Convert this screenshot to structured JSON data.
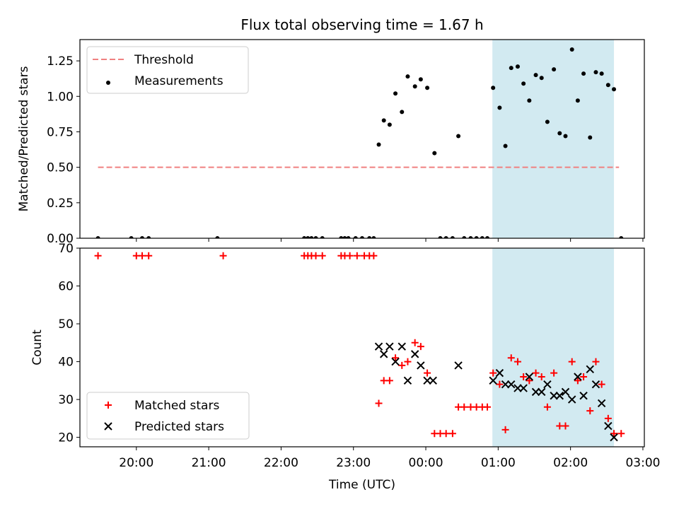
{
  "title": "Flux total observing time = 1.67 h",
  "colors": {
    "threshold": "#f08080",
    "measurements": "#000000",
    "matched": "#ff0000",
    "predicted": "#000000",
    "span": "#add8e6"
  },
  "chart_data": [
    {
      "type": "scatter",
      "ylabel": "Matched/Predicted stars",
      "ylim": [
        0,
        1.4
      ],
      "yticks": [
        "0.00",
        "0.25",
        "0.50",
        "0.75",
        "1.00",
        "1.25"
      ],
      "x_unit": "hours since 00:00 UTC (negative = previous evening)",
      "xlim": [
        -4.78,
        3.02
      ],
      "shaded_span": [
        0.92,
        2.6
      ],
      "legend": {
        "position": "upper-left",
        "entries": [
          "Threshold",
          "Measurements"
        ]
      },
      "threshold": {
        "name": "Threshold",
        "value": 0.5,
        "x_range": [
          -4.53,
          2.67
        ]
      },
      "series": [
        {
          "name": "Measurements",
          "points": [
            [
              -4.53,
              0
            ],
            [
              -4.07,
              0
            ],
            [
              -3.92,
              0
            ],
            [
              -3.83,
              0
            ],
            [
              -2.88,
              0
            ],
            [
              -1.68,
              0
            ],
            [
              -1.63,
              0
            ],
            [
              -1.58,
              0
            ],
            [
              -1.52,
              0
            ],
            [
              -1.43,
              0
            ],
            [
              -1.17,
              0
            ],
            [
              -1.12,
              0
            ],
            [
              -1.07,
              0
            ],
            [
              -0.97,
              0
            ],
            [
              -0.88,
              0
            ],
            [
              -0.78,
              0
            ],
            [
              -0.72,
              0
            ],
            [
              -0.65,
              0.66
            ],
            [
              -0.58,
              0.83
            ],
            [
              -0.5,
              0.8
            ],
            [
              -0.42,
              1.02
            ],
            [
              -0.33,
              0.89
            ],
            [
              -0.25,
              1.14
            ],
            [
              -0.15,
              1.07
            ],
            [
              -0.07,
              1.12
            ],
            [
              0.02,
              1.06
            ],
            [
              0.12,
              0.6
            ],
            [
              0.2,
              0
            ],
            [
              0.28,
              0
            ],
            [
              0.37,
              0
            ],
            [
              0.45,
              0.72
            ],
            [
              0.53,
              0
            ],
            [
              0.62,
              0
            ],
            [
              0.7,
              0
            ],
            [
              0.78,
              0
            ],
            [
              0.85,
              0
            ],
            [
              0.93,
              1.06
            ],
            [
              1.02,
              0.92
            ],
            [
              1.1,
              0.65
            ],
            [
              1.18,
              1.2
            ],
            [
              1.27,
              1.21
            ],
            [
              1.35,
              1.09
            ],
            [
              1.43,
              0.97
            ],
            [
              1.52,
              1.15
            ],
            [
              1.6,
              1.13
            ],
            [
              1.68,
              0.82
            ],
            [
              1.77,
              1.19
            ],
            [
              1.85,
              0.74
            ],
            [
              1.93,
              0.72
            ],
            [
              2.02,
              1.33
            ],
            [
              2.1,
              0.97
            ],
            [
              2.18,
              1.16
            ],
            [
              2.27,
              0.71
            ],
            [
              2.35,
              1.17
            ],
            [
              2.43,
              1.16
            ],
            [
              2.52,
              1.08
            ],
            [
              2.6,
              1.05
            ],
            [
              2.7,
              0
            ]
          ]
        }
      ]
    },
    {
      "type": "scatter",
      "ylabel": "Count",
      "xlabel": "Time (UTC)",
      "ylim": [
        17.5,
        70
      ],
      "yticks": [
        "20",
        "30",
        "40",
        "50",
        "60",
        "70"
      ],
      "xticks": [
        "20:00",
        "21:00",
        "22:00",
        "23:00",
        "00:00",
        "01:00",
        "02:00",
        "03:00"
      ],
      "x_unit": "hours since 00:00 UTC (negative = previous evening)",
      "xlim": [
        -4.78,
        3.02
      ],
      "shaded_span": [
        0.92,
        2.6
      ],
      "legend": {
        "position": "lower-left",
        "entries": [
          "Matched stars",
          "Predicted stars"
        ]
      },
      "series": [
        {
          "name": "Matched stars",
          "points": [
            [
              -4.53,
              68
            ],
            [
              -4.0,
              68
            ],
            [
              -3.92,
              68
            ],
            [
              -3.83,
              68
            ],
            [
              -2.8,
              68
            ],
            [
              -1.68,
              68
            ],
            [
              -1.63,
              68
            ],
            [
              -1.58,
              68
            ],
            [
              -1.52,
              68
            ],
            [
              -1.43,
              68
            ],
            [
              -1.17,
              68
            ],
            [
              -1.12,
              68
            ],
            [
              -1.05,
              68
            ],
            [
              -0.95,
              68
            ],
            [
              -0.85,
              68
            ],
            [
              -0.78,
              68
            ],
            [
              -0.72,
              68
            ],
            [
              -0.65,
              29
            ],
            [
              -0.58,
              35
            ],
            [
              -0.5,
              35
            ],
            [
              -0.42,
              41
            ],
            [
              -0.33,
              39
            ],
            [
              -0.25,
              40
            ],
            [
              -0.15,
              45
            ],
            [
              -0.07,
              44
            ],
            [
              0.02,
              37
            ],
            [
              0.12,
              21
            ],
            [
              0.2,
              21
            ],
            [
              0.28,
              21
            ],
            [
              0.37,
              21
            ],
            [
              0.45,
              28
            ],
            [
              0.53,
              28
            ],
            [
              0.62,
              28
            ],
            [
              0.7,
              28
            ],
            [
              0.78,
              28
            ],
            [
              0.85,
              28
            ],
            [
              0.93,
              37
            ],
            [
              1.02,
              34
            ],
            [
              1.1,
              22
            ],
            [
              1.18,
              41
            ],
            [
              1.27,
              40
            ],
            [
              1.35,
              36
            ],
            [
              1.43,
              35
            ],
            [
              1.52,
              37
            ],
            [
              1.6,
              36
            ],
            [
              1.68,
              28
            ],
            [
              1.77,
              37
            ],
            [
              1.85,
              23
            ],
            [
              1.93,
              23
            ],
            [
              2.02,
              40
            ],
            [
              2.1,
              35
            ],
            [
              2.18,
              36
            ],
            [
              2.27,
              27
            ],
            [
              2.35,
              40
            ],
            [
              2.43,
              34
            ],
            [
              2.52,
              25
            ],
            [
              2.6,
              21
            ],
            [
              2.7,
              21
            ]
          ]
        },
        {
          "name": "Predicted stars",
          "points": [
            [
              -0.65,
              44
            ],
            [
              -0.58,
              42
            ],
            [
              -0.5,
              44
            ],
            [
              -0.42,
              40
            ],
            [
              -0.33,
              44
            ],
            [
              -0.25,
              35
            ],
            [
              -0.15,
              42
            ],
            [
              -0.07,
              39
            ],
            [
              0.02,
              35
            ],
            [
              0.1,
              35
            ],
            [
              0.45,
              39
            ],
            [
              0.93,
              35
            ],
            [
              1.02,
              37
            ],
            [
              1.1,
              34
            ],
            [
              1.18,
              34
            ],
            [
              1.27,
              33
            ],
            [
              1.35,
              33
            ],
            [
              1.43,
              36
            ],
            [
              1.52,
              32
            ],
            [
              1.6,
              32
            ],
            [
              1.68,
              34
            ],
            [
              1.77,
              31
            ],
            [
              1.85,
              31
            ],
            [
              1.93,
              32
            ],
            [
              2.02,
              30
            ],
            [
              2.1,
              36
            ],
            [
              2.18,
              31
            ],
            [
              2.27,
              38
            ],
            [
              2.35,
              34
            ],
            [
              2.43,
              29
            ],
            [
              2.52,
              23
            ],
            [
              2.6,
              20
            ]
          ]
        }
      ]
    }
  ]
}
